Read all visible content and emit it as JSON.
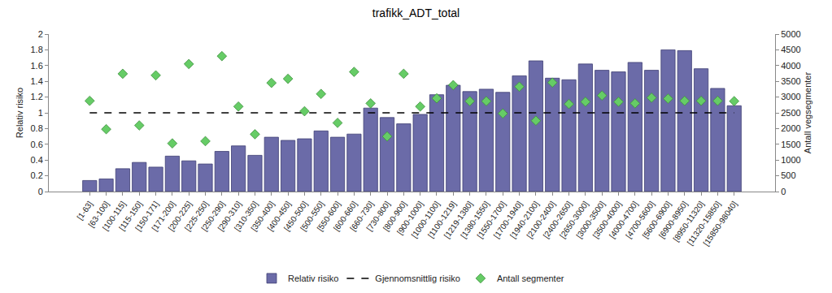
{
  "chart_data": {
    "type": "bar",
    "title": "trafikk_ADT_total",
    "y_label": "Relativ risiko",
    "y2_label": "Antall vegsegmenter",
    "categories": [
      "[1-63]",
      "[63-100]",
      "[100-115]",
      "[115-150]",
      "[150-171]",
      "[171-200]",
      "[200-225]",
      "[225-250]",
      "[250-290]",
      "[290-310]",
      "[310-350]",
      "[350-400]",
      "[400-450]",
      "[450-500]",
      "[500-550]",
      "[550-600]",
      "[600-660]",
      "[660-730]",
      "[730-800]",
      "[800-900]",
      "[900-1000]",
      "[1000-1100]",
      "[1100-1219]",
      "[1219-1380]",
      "[1380-1550]",
      "[1550-1700]",
      "[1700-1940]",
      "[1940-2100]",
      "[2100-2400]",
      "[2400-2650]",
      "[2650-3000]",
      "[3000-3500]",
      "[3500-4000]",
      "[4000-4700]",
      "[4700-5600]",
      "[5600-6900]",
      "[6900-8950]",
      "[8950-11320]",
      "[11320-15850]",
      "[15850-98040]"
    ],
    "series": [
      {
        "name": "Relativ risiko",
        "type": "bar",
        "color": "#6b6ba8",
        "values": [
          0.14,
          0.16,
          0.29,
          0.37,
          0.31,
          0.45,
          0.39,
          0.35,
          0.51,
          0.58,
          0.46,
          0.69,
          0.65,
          0.67,
          0.77,
          0.69,
          0.73,
          1.06,
          0.94,
          0.86,
          0.98,
          1.23,
          1.35,
          1.27,
          1.3,
          1.26,
          1.47,
          1.66,
          1.44,
          1.42,
          1.62,
          1.54,
          1.52,
          1.64,
          1.54,
          1.8,
          1.79,
          1.56,
          1.31,
          1.09
        ]
      },
      {
        "name": "Gjennomsnittlig risiko",
        "type": "line",
        "color": "#000000",
        "line_style": "dash",
        "values": [
          1,
          1,
          1,
          1,
          1,
          1,
          1,
          1,
          1,
          1,
          1,
          1,
          1,
          1,
          1,
          1,
          1,
          1,
          1,
          1,
          1,
          1,
          1,
          1,
          1,
          1,
          1,
          1,
          1,
          1,
          1,
          1,
          1,
          1,
          1,
          1,
          1,
          1,
          1,
          1
        ]
      },
      {
        "name": "Antall segmenter",
        "type": "scatter",
        "axis": "y2",
        "color": "#66cc66",
        "marker": "diamond",
        "values": [
          2880,
          1980,
          3740,
          2100,
          3690,
          1530,
          4050,
          1600,
          4300,
          2700,
          1820,
          3450,
          3580,
          2550,
          3100,
          2180,
          3800,
          2800,
          1750,
          3740,
          2700,
          2960,
          3380,
          2870,
          2870,
          2480,
          3330,
          2250,
          3460,
          2780,
          2850,
          3050,
          2850,
          2800,
          2980,
          2950,
          2880,
          2880,
          2880,
          2870
        ]
      }
    ],
    "ylim": [
      0,
      2
    ],
    "yticks": [
      0,
      0.2,
      0.4,
      0.6,
      0.8,
      1,
      1.2,
      1.4,
      1.6,
      1.8,
      2
    ],
    "y2lim": [
      0,
      5000
    ],
    "y2ticks": [
      0,
      500,
      1000,
      1500,
      2000,
      2500,
      3000,
      3500,
      4000,
      4500,
      5000
    ],
    "grid": false,
    "legend": "bottom"
  }
}
